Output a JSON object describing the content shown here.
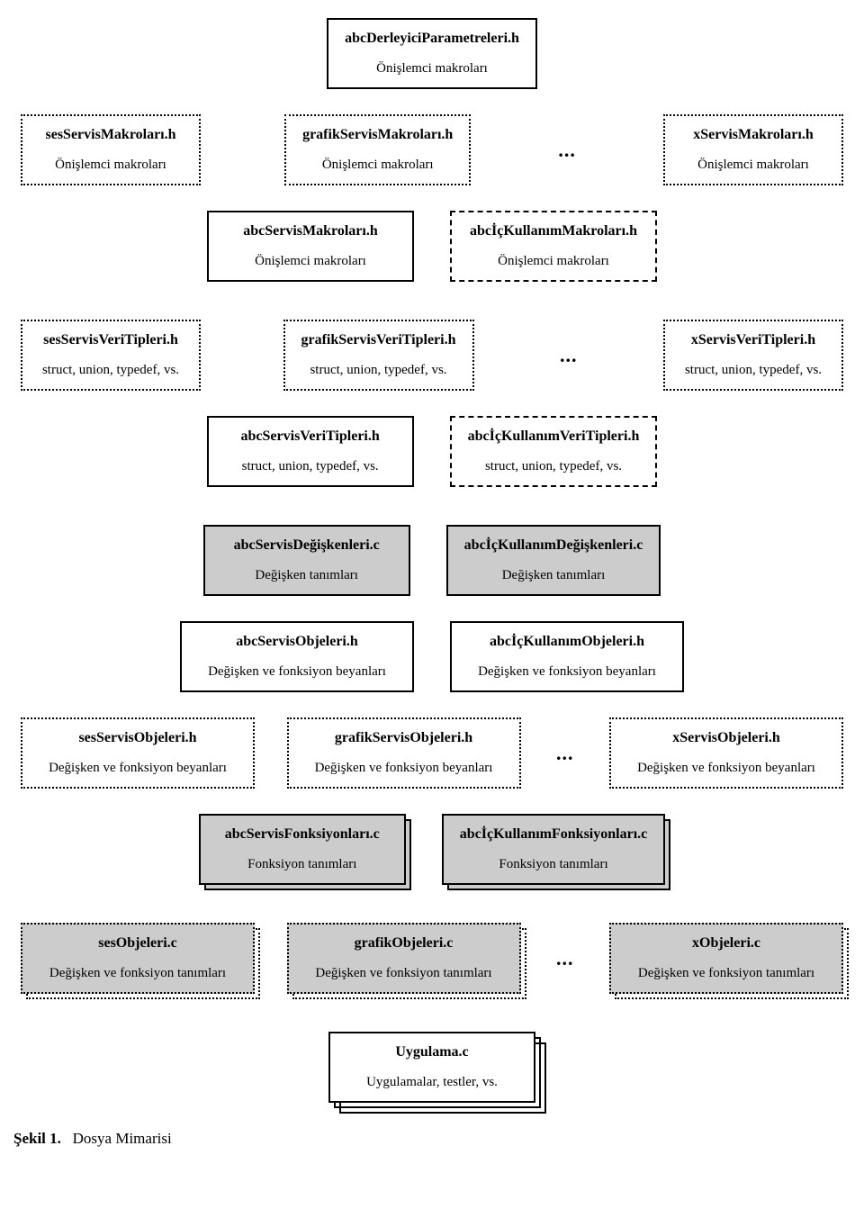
{
  "colors": {
    "background": "#ffffff",
    "border": "#000000",
    "gray_fill": "#cccccc",
    "text": "#000000"
  },
  "typography": {
    "font_family": "Times New Roman",
    "title_weight": "bold",
    "title_size_pt": 12,
    "sub_size_pt": 11
  },
  "border_styles": {
    "solid": "2px solid",
    "dotted": "2px dotted",
    "dashed": "2px dashed"
  },
  "rows": [
    {
      "id": "r1",
      "layout": "center-single",
      "items": [
        {
          "title": "abcDerleyiciParametreleri.h",
          "sub": "Önişlemci makroları",
          "border": "solid"
        }
      ]
    },
    {
      "id": "r2",
      "layout": "three-with-ellipsis",
      "items": [
        {
          "title": "sesServisMakroları.h",
          "sub": "Önişlemci makroları",
          "border": "dotted"
        },
        {
          "title": "grafikServisMakroları.h",
          "sub": "Önişlemci makroları",
          "border": "dotted"
        },
        {
          "title": "xServisMakroları.h",
          "sub": "Önişlemci makroları",
          "border": "dotted"
        }
      ],
      "ellipsis": "..."
    },
    {
      "id": "r3",
      "layout": "two",
      "items": [
        {
          "title": "abcServisMakroları.h",
          "sub": "Önişlemci makroları",
          "border": "solid"
        },
        {
          "title": "abcİçKullanımMakroları.h",
          "sub": "Önişlemci makroları",
          "border": "dashed"
        }
      ]
    },
    {
      "id": "r4",
      "layout": "three-with-ellipsis",
      "items": [
        {
          "title": "sesServisVeriTipleri.h",
          "sub": "struct, union, typedef, vs.",
          "border": "dotted"
        },
        {
          "title": "grafikServisVeriTipleri.h",
          "sub": "struct, union, typedef, vs.",
          "border": "dotted"
        },
        {
          "title": "xServisVeriTipleri.h",
          "sub": "struct, union, typedef, vs.",
          "border": "dotted"
        }
      ],
      "ellipsis": "..."
    },
    {
      "id": "r5",
      "layout": "two",
      "items": [
        {
          "title": "abcServisVeriTipleri.h",
          "sub": "struct, union, typedef, vs.",
          "border": "solid"
        },
        {
          "title": "abcİçKullanımVeriTipleri.h",
          "sub": "struct, union, typedef, vs.",
          "border": "dashed"
        }
      ]
    },
    {
      "id": "r6",
      "layout": "two",
      "items": [
        {
          "title": "abcServisDeğişkenleri.c",
          "sub": "Değişken tanımları",
          "border": "solid",
          "fill": "gray"
        },
        {
          "title": "abcİçKullanımDeğişkenleri.c",
          "sub": "Değişken tanımları",
          "border": "solid",
          "fill": "gray"
        }
      ]
    },
    {
      "id": "r7",
      "layout": "two",
      "items": [
        {
          "title": "abcServisObjeleri.h",
          "sub": "Değişken ve fonksiyon beyanları",
          "border": "solid"
        },
        {
          "title": "abcİçKullanımObjeleri.h",
          "sub": "Değişken ve fonksiyon beyanları",
          "border": "solid"
        }
      ]
    },
    {
      "id": "r8",
      "layout": "three-with-ellipsis",
      "items": [
        {
          "title": "sesServisObjeleri.h",
          "sub": "Değişken ve fonksiyon beyanları",
          "border": "dotted"
        },
        {
          "title": "grafikServisObjeleri.h",
          "sub": "Değişken ve fonksiyon beyanları",
          "border": "dotted"
        },
        {
          "title": "xServisObjeleri.h",
          "sub": "Değişken ve fonksiyon beyanları",
          "border": "dotted"
        }
      ],
      "ellipsis": "..."
    },
    {
      "id": "r9",
      "layout": "two",
      "items": [
        {
          "title": "abcServisFonksiyonları.c",
          "sub": "Fonksiyon tanımları",
          "border": "solid",
          "fill": "gray",
          "stacked": "solid"
        },
        {
          "title": "abcİçKullanımFonksiyonları.c",
          "sub": "Fonksiyon tanımları",
          "border": "solid",
          "fill": "gray",
          "stacked": "solid"
        }
      ]
    },
    {
      "id": "r10",
      "layout": "three-with-ellipsis",
      "items": [
        {
          "title": "sesObjeleri.c",
          "sub": "Değişken ve fonksiyon tanımları",
          "border": "dotted",
          "fill": "gray",
          "stacked": "dotted"
        },
        {
          "title": "grafikObjeleri.c",
          "sub": "Değişken ve fonksiyon tanımları",
          "border": "dotted",
          "fill": "gray",
          "stacked": "dotted"
        },
        {
          "title": "xObjeleri.c",
          "sub": "Değişken ve fonksiyon tanımları",
          "border": "dotted",
          "fill": "gray",
          "stacked": "dotted"
        }
      ],
      "ellipsis": "..."
    },
    {
      "id": "r11",
      "layout": "center-single",
      "items": [
        {
          "title": "Uygulama.c",
          "sub": "Uygulamalar, testler, vs.",
          "border": "solid",
          "stacked": "triple"
        }
      ]
    }
  ],
  "caption": {
    "label": "Şekil 1.",
    "text": "Dosya Mimarisi"
  }
}
